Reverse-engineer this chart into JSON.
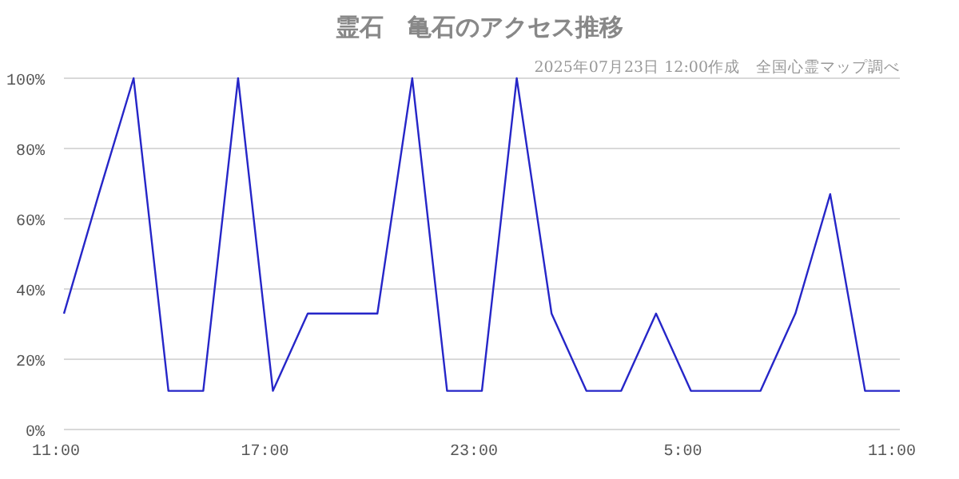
{
  "chart_data": {
    "type": "line",
    "title": "霊石　亀石のアクセス推移",
    "subtitle": "2025年07月23日 12:00作成　全国心霊マップ調べ",
    "x": [
      "2025-07-22T11:00",
      "2025-07-22T12:00",
      "2025-07-22T13:00",
      "2025-07-22T14:00",
      "2025-07-22T15:00",
      "2025-07-22T16:00",
      "2025-07-22T17:00",
      "2025-07-22T18:00",
      "2025-07-22T19:00",
      "2025-07-22T20:00",
      "2025-07-22T21:00",
      "2025-07-22T22:00",
      "2025-07-22T23:00",
      "2025-07-23T00:00",
      "2025-07-23T01:00",
      "2025-07-23T02:00",
      "2025-07-23T03:00",
      "2025-07-23T04:00",
      "2025-07-23T05:00",
      "2025-07-23T06:00",
      "2025-07-23T07:00",
      "2025-07-23T08:00",
      "2025-07-23T09:00",
      "2025-07-23T10:00",
      "2025-07-23T11:00"
    ],
    "series": [
      {
        "color": "#2626c8",
        "values": [
          33,
          67,
          100,
          11,
          11,
          100,
          11,
          33,
          33,
          33,
          100,
          11,
          11,
          100,
          33,
          11,
          11,
          33,
          11,
          11,
          11,
          33,
          67,
          11,
          11
        ]
      }
    ],
    "xlim": [
      "2025-07-22T11:00",
      "2025-07-23T11:00"
    ],
    "xticks": [
      {
        "value": "2025-07-22T11:00",
        "label": "11:00"
      },
      {
        "value": "2025-07-22T17:00",
        "label": "17:00"
      },
      {
        "value": "2025-07-22T23:00",
        "label": "23:00"
      },
      {
        "value": "2025-07-23T05:00",
        "label": "5:00"
      },
      {
        "value": "2025-07-23T11:00",
        "label": "11:00"
      }
    ],
    "ylim": [
      0,
      100
    ],
    "yticks": [
      {
        "value": 0,
        "label": "0%"
      },
      {
        "value": 20,
        "label": "20%"
      },
      {
        "value": 40,
        "label": "40%"
      },
      {
        "value": 60,
        "label": "60%"
      },
      {
        "value": 80,
        "label": "80%"
      },
      {
        "value": 100,
        "label": "100%"
      }
    ],
    "grid": "y",
    "marker": "none",
    "line_style": "solid"
  }
}
